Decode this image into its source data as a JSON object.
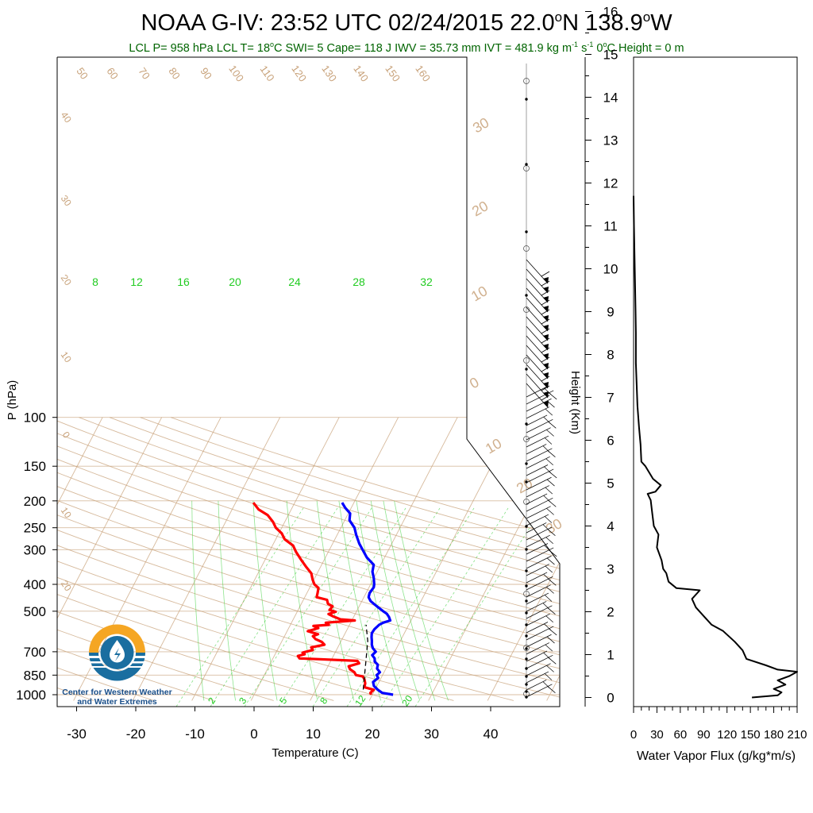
{
  "title": {
    "prefix": "NOAA G-IV: 23:52 UTC 02/24/2015  22.0",
    "deg1": "o",
    "mid": "N 138.9",
    "deg2": "o",
    "suffix": "W"
  },
  "subtitle": {
    "p1": "LCL P= 958 hPa  LCL T= 18",
    "deg_a": "o",
    "p2": "C  SWI= 5  Cape= 118 J  IWV = 35.73 mm  IVT = 481.9 kg m",
    "sup1": "-1",
    "p3": " s",
    "sup2": "-1",
    "p4": "  0",
    "deg_b": "o",
    "p5": "C Height = 0 m"
  },
  "colors": {
    "temperature": "#ff0000",
    "dewpoint_note": "red line is dewpoint, blue line is temperature",
    "temp_line": "#0000ff",
    "dew_line": "#ff0000",
    "dry_adiabat": "#c8a27a",
    "mixing_ratio": "#32cd32",
    "flux": "#000000",
    "subtitle": "#006400",
    "logo_orange": "#f5a623",
    "logo_blue": "#1a6ea0"
  },
  "logo": {
    "line1": "Center for Western Weather",
    "line2": "and Water Extremes"
  },
  "chart_data": [
    {
      "type": "line",
      "title": "Skew-T sounding",
      "xlabel": "Temperature (C)",
      "ylabel": "P (hPa)",
      "xticks": [
        -30,
        -20,
        -10,
        0,
        10,
        20,
        30,
        40
      ],
      "yticks": [
        100,
        150,
        200,
        250,
        300,
        400,
        500,
        700,
        850,
        1000
      ],
      "ylim": [
        1000,
        100
      ],
      "yscale": "log",
      "dry_adiabat_labels": [
        "50",
        "60",
        "70",
        "80",
        "90",
        "100",
        "110",
        "120",
        "130",
        "140",
        "150",
        "160",
        "40",
        "30",
        "20",
        "10",
        "0",
        "10",
        "20"
      ],
      "isotherm_labels": [
        "30",
        "20",
        "10",
        "0",
        "10",
        "20",
        "30"
      ],
      "mixing_ratio_top_labels": [
        "8",
        "12",
        "16",
        "20",
        "24",
        "28",
        "32"
      ],
      "mixing_ratio_bottom_labels": [
        "2",
        "3",
        "5",
        "8",
        "12",
        "20"
      ],
      "series": [
        {
          "role": "temperature",
          "points": [
            [
              23.5,
              1000
            ],
            [
              21.5,
              985
            ],
            [
              20.5,
              960
            ],
            [
              19.5,
              930
            ],
            [
              19,
              900
            ],
            [
              19.5,
              870
            ],
            [
              19,
              850
            ],
            [
              19.3,
              830
            ],
            [
              18.5,
              805
            ],
            [
              18.3,
              780
            ],
            [
              17.5,
              760
            ],
            [
              17.2,
              740
            ],
            [
              16.5,
              720
            ],
            [
              16.8,
              700
            ],
            [
              16,
              680
            ],
            [
              15.5,
              660
            ],
            [
              15.2,
              640
            ],
            [
              14.8,
              620
            ],
            [
              14.5,
              600
            ],
            [
              14.6,
              580
            ],
            [
              15,
              560
            ],
            [
              15.5,
              550
            ],
            [
              16.5,
              540
            ],
            [
              16,
              525
            ],
            [
              15.3,
              510
            ],
            [
              14.5,
              500
            ],
            [
              13,
              480
            ],
            [
              11.5,
              460
            ],
            [
              10.8,
              445
            ],
            [
              10.6,
              430
            ],
            [
              10.8,
              410
            ],
            [
              10.6,
              400
            ],
            [
              10,
              380
            ],
            [
              9.2,
              360
            ],
            [
              8.8,
              340
            ],
            [
              7,
              320
            ],
            [
              5.6,
              300
            ],
            [
              4.5,
              285
            ],
            [
              3.2,
              265
            ],
            [
              2.3,
              250
            ],
            [
              0.8,
              235
            ],
            [
              0.3,
              222
            ],
            [
              -1,
              212
            ],
            [
              -2,
              203
            ]
          ]
        },
        {
          "role": "dewpoint",
          "points": [
            [
              19.8,
              1000
            ],
            [
              19.5,
              985
            ],
            [
              19.8,
              960
            ],
            [
              18,
              940
            ],
            [
              17.8,
              910
            ],
            [
              17.3,
              880
            ],
            [
              16.8,
              860
            ],
            [
              15.5,
              850
            ],
            [
              15,
              830
            ],
            [
              14,
              810
            ],
            [
              13.5,
              790
            ],
            [
              15,
              770
            ],
            [
              14.5,
              755
            ],
            [
              8,
              745
            ],
            [
              4.5,
              740
            ],
            [
              4,
              725
            ],
            [
              5,
              715
            ],
            [
              4.5,
              705
            ],
            [
              6,
              690
            ],
            [
              5.5,
              675
            ],
            [
              7.5,
              660
            ],
            [
              6.8,
              645
            ],
            [
              5.5,
              630
            ],
            [
              4.8,
              615
            ],
            [
              5.5,
              605
            ],
            [
              3.5,
              590
            ],
            [
              5,
              575
            ],
            [
              4,
              565
            ],
            [
              6.5,
              560
            ],
            [
              5.8,
              550
            ],
            [
              10.5,
              540
            ],
            [
              8,
              535
            ],
            [
              6.5,
              522
            ],
            [
              5.5,
              512
            ],
            [
              6.5,
              502
            ],
            [
              5.3,
              495
            ],
            [
              5.5,
              480
            ],
            [
              4.5,
              470
            ],
            [
              4,
              455
            ],
            [
              2,
              445
            ],
            [
              1.8,
              430
            ],
            [
              1.5,
              412
            ],
            [
              0.5,
              400
            ],
            [
              -0.2,
              385
            ],
            [
              -1,
              365
            ],
            [
              -2.5,
              345
            ],
            [
              -4,
              325
            ],
            [
              -5.5,
              305
            ],
            [
              -6.5,
              290
            ],
            [
              -8.5,
              275
            ],
            [
              -9.5,
              262
            ],
            [
              -11,
              250
            ],
            [
              -12,
              238
            ],
            [
              -13.5,
              225
            ],
            [
              -15.5,
              215
            ],
            [
              -17,
              203
            ]
          ]
        },
        {
          "role": "parcel",
          "points": [
            [
              18,
              958
            ],
            [
              16,
              760
            ],
            [
              14.5,
              640
            ],
            [
              12.8,
              560
            ]
          ]
        }
      ]
    },
    {
      "type": "line",
      "title": "Water vapor flux profile",
      "xlabel": "Water Vapor Flux (g/kg*m/s)",
      "ylabel": "Height (Km)",
      "xticks": [
        0,
        30,
        60,
        90,
        120,
        150,
        180,
        210
      ],
      "yticks": [
        0,
        1,
        2,
        3,
        4,
        5,
        6,
        7,
        8,
        9,
        10,
        11,
        12,
        13,
        14,
        15,
        16
      ],
      "xlim": [
        0,
        210
      ],
      "ylim": [
        -0.35,
        16.3
      ],
      "series": [
        {
          "role": "flux",
          "points": [
            [
              152,
              0
            ],
            [
              185,
              0.05
            ],
            [
              190,
              0.12
            ],
            [
              180,
              0.2
            ],
            [
              195,
              0.3
            ],
            [
              185,
              0.4
            ],
            [
              200,
              0.5
            ],
            [
              210,
              0.6
            ],
            [
              185,
              0.65
            ],
            [
              170,
              0.75
            ],
            [
              145,
              0.9
            ],
            [
              140,
              1.1
            ],
            [
              130,
              1.3
            ],
            [
              115,
              1.55
            ],
            [
              100,
              1.7
            ],
            [
              90,
              1.9
            ],
            [
              80,
              2.1
            ],
            [
              75,
              2.3
            ],
            [
              85,
              2.5
            ],
            [
              55,
              2.55
            ],
            [
              45,
              2.7
            ],
            [
              42,
              2.9
            ],
            [
              38,
              3.0
            ],
            [
              36,
              3.2
            ],
            [
              30,
              3.5
            ],
            [
              32,
              3.8
            ],
            [
              26,
              4.0
            ],
            [
              24,
              4.3
            ],
            [
              22,
              4.6
            ],
            [
              18,
              4.75
            ],
            [
              28,
              4.8
            ],
            [
              35,
              4.95
            ],
            [
              25,
              5.1
            ],
            [
              15,
              5.4
            ],
            [
              10,
              5.5
            ],
            [
              9,
              5.9
            ],
            [
              7,
              6.3
            ],
            [
              5,
              6.8
            ],
            [
              4,
              7.3
            ],
            [
              3,
              7.8
            ],
            [
              3,
              8.5
            ],
            [
              2.5,
              9
            ],
            [
              2,
              9.5
            ],
            [
              1.5,
              10
            ],
            [
              1,
              10.5
            ],
            [
              0.5,
              11
            ],
            [
              0,
              11.7
            ]
          ]
        }
      ]
    }
  ]
}
